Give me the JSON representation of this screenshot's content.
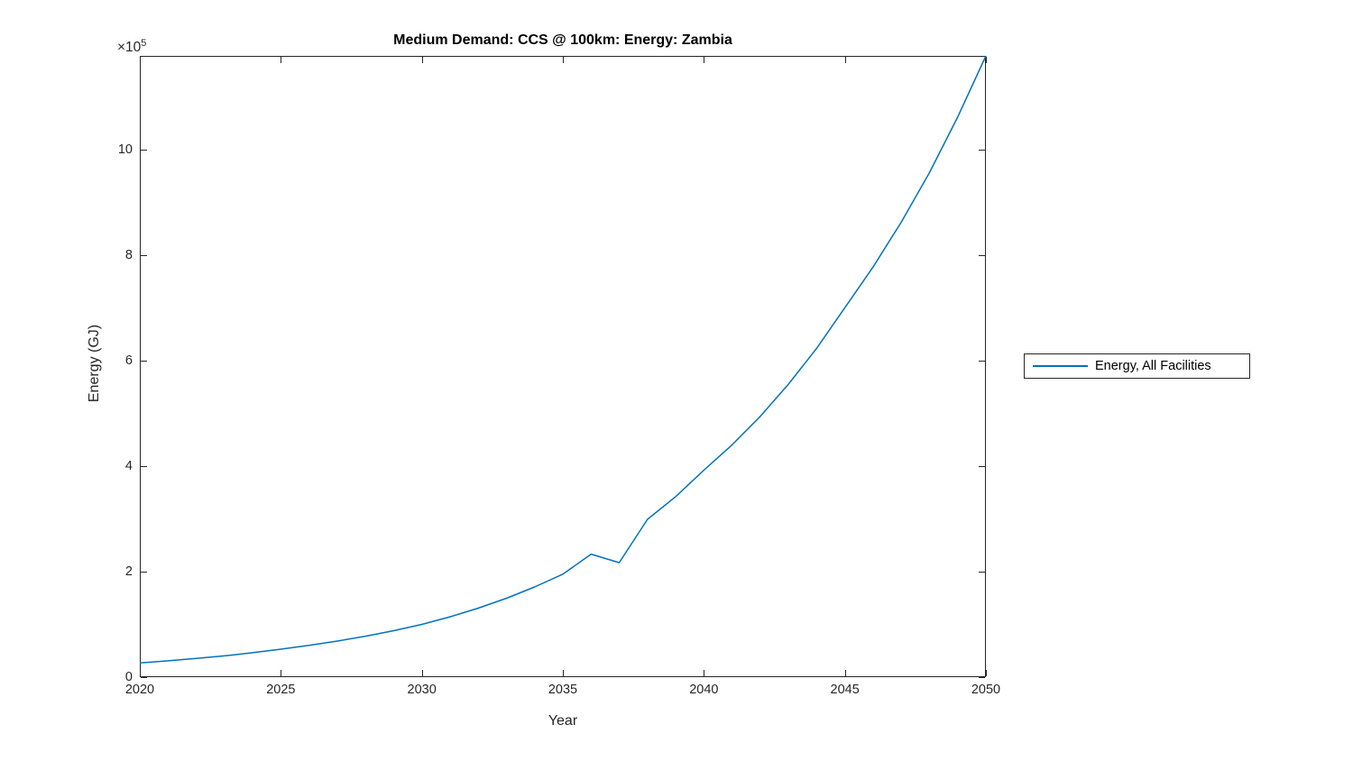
{
  "chart_data": {
    "type": "line",
    "title": "Medium Demand: CCS @ 100km: Energy: Zambia",
    "xlabel": "Year",
    "ylabel": "Energy (GJ)",
    "y_multiplier": {
      "base": "×10",
      "exp": "5"
    },
    "xlim": [
      2020,
      2050
    ],
    "ylim": [
      0,
      1177000
    ],
    "xticks": [
      2020,
      2025,
      2030,
      2035,
      2040,
      2045,
      2050
    ],
    "xtick_labels": [
      "2020",
      "2025",
      "2030",
      "2035",
      "2040",
      "2045",
      "2050"
    ],
    "yticks": [
      0,
      200000,
      400000,
      600000,
      800000,
      1000000
    ],
    "ytick_labels": [
      "0",
      "2",
      "4",
      "6",
      "8",
      "10"
    ],
    "grid": false,
    "legend_position": "outside-right",
    "axis_color": "#262626",
    "background_color": "#ffffff",
    "x": [
      2020,
      2021,
      2022,
      2023,
      2024,
      2025,
      2026,
      2027,
      2028,
      2029,
      2030,
      2031,
      2032,
      2033,
      2034,
      2035,
      2036,
      2037,
      2038,
      2039,
      2040,
      2041,
      2042,
      2043,
      2044,
      2045,
      2046,
      2047,
      2048,
      2049,
      2050
    ],
    "series": [
      {
        "name": "Energy, All Facilities",
        "color": "#0072BD",
        "values": [
          27000,
          30900,
          35300,
          40400,
          46300,
          53000,
          60200,
          68300,
          77500,
          88000,
          100000,
          114300,
          130700,
          149400,
          170800,
          195000,
          233000,
          217000,
          299000,
          342000,
          392000,
          440000,
          494000,
          555000,
          623000,
          700000,
          777000,
          862000,
          956000,
          1061000,
          1177000
        ]
      }
    ]
  }
}
